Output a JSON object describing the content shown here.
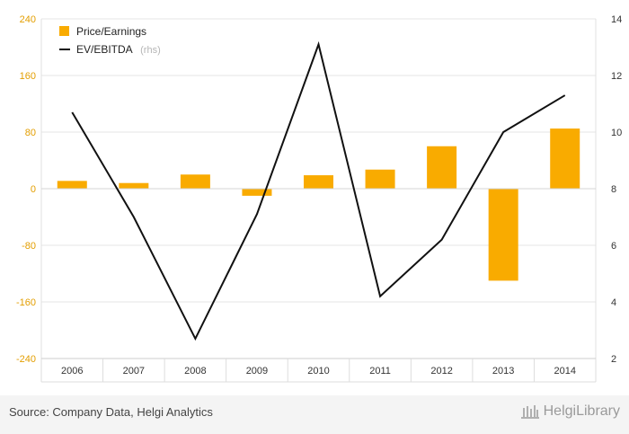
{
  "chart_data": {
    "type": "bar+line",
    "categories": [
      "2006",
      "2007",
      "2008",
      "2009",
      "2010",
      "2011",
      "2012",
      "2013",
      "2014"
    ],
    "series": [
      {
        "name": "Price/Earnings",
        "type": "bar",
        "axis": "left",
        "color": "#f9ab00",
        "values": [
          11,
          8,
          20,
          -10,
          19,
          27,
          60,
          -130,
          85
        ]
      },
      {
        "name": "EV/EBITDA",
        "type": "line",
        "axis": "right",
        "color": "#111111",
        "values": [
          10.7,
          7.0,
          2.7,
          7.1,
          13.1,
          4.2,
          6.2,
          10.0,
          11.3
        ]
      }
    ],
    "legend": {
      "position": "top-left",
      "items": [
        {
          "label": "Price/Earnings",
          "suffix": ""
        },
        {
          "label": "EV/EBITDA",
          "suffix": "(rhs)"
        }
      ]
    },
    "y_left": {
      "ylim": [
        -240,
        240
      ],
      "ticks": [
        "240",
        "160",
        "80",
        "0",
        "-80",
        "-160",
        "-240"
      ]
    },
    "y_right": {
      "ylim": [
        2,
        14
      ],
      "ticks": [
        "14",
        "12",
        "10",
        "8",
        "6",
        "4",
        "2"
      ]
    },
    "grid": true
  },
  "footer": {
    "source": "Source: Company Data, Helgi Analytics",
    "brand": "HelgiLibrary"
  }
}
